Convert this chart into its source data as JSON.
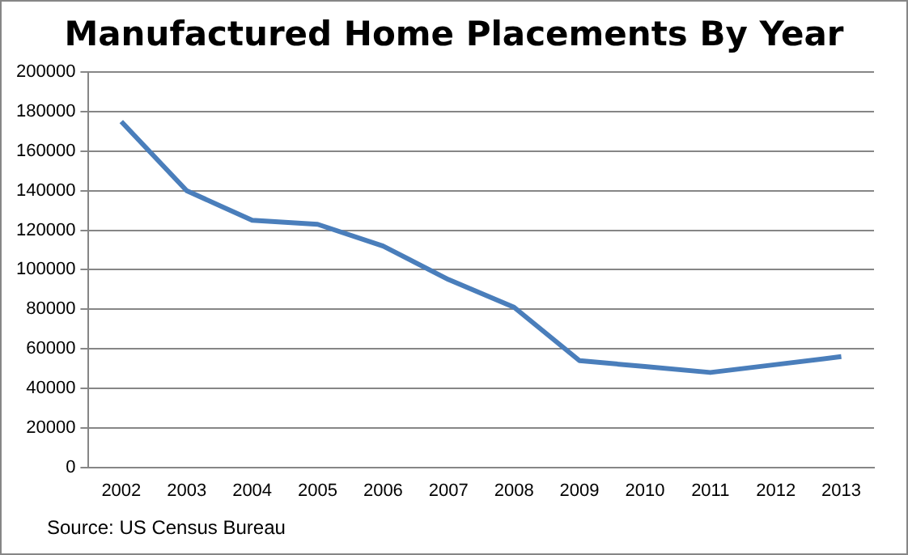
{
  "chart_data": {
    "type": "line",
    "title": "Manufactured Home Placements By Year",
    "categories": [
      "2002",
      "2003",
      "2004",
      "2005",
      "2006",
      "2007",
      "2008",
      "2009",
      "2010",
      "2011",
      "2012",
      "2013"
    ],
    "series": [
      {
        "color": "#4a7ebb",
        "values": [
          175000,
          140000,
          125000,
          123000,
          112000,
          95000,
          81000,
          54000,
          51000,
          48000,
          52000,
          56000
        ]
      }
    ],
    "ylim": [
      0,
      200000
    ],
    "yticks": [
      0,
      20000,
      40000,
      60000,
      80000,
      100000,
      120000,
      140000,
      160000,
      180000,
      200000
    ],
    "grid": "y",
    "legend": false,
    "marker": "none",
    "line_style": "solid",
    "annotations": [
      "Source: US Census Bureau"
    ]
  }
}
